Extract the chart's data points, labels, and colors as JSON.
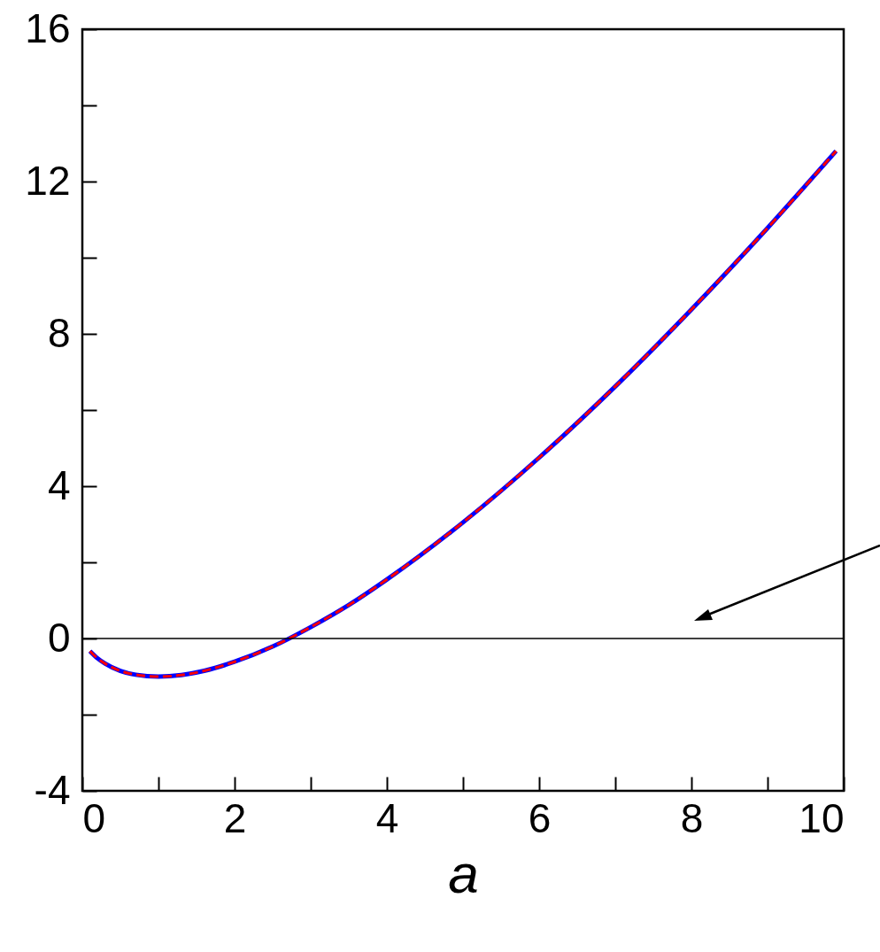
{
  "chart_data": {
    "type": "line",
    "xlabel": "a",
    "x": [
      0.1,
      0.2,
      0.3,
      0.5,
      0.7,
      1,
      1.3,
      1.6,
      2,
      2.5,
      3,
      3.5,
      4,
      5,
      6,
      7,
      8,
      9,
      9.9
    ],
    "series": [
      {
        "color": "#0000ff",
        "line_style": "solid",
        "values": [
          -0.33,
          -0.52,
          -0.66,
          -0.85,
          -0.95,
          -1.0,
          -0.96,
          -0.85,
          -0.61,
          -0.21,
          0.3,
          0.88,
          1.55,
          3.05,
          4.75,
          6.62,
          8.64,
          10.78,
          12.8
        ]
      },
      {
        "color": "#ff0000",
        "line_style": "dashed",
        "values": [
          -0.33,
          -0.52,
          -0.66,
          -0.85,
          -0.95,
          -1.0,
          -0.96,
          -0.85,
          -0.61,
          -0.21,
          0.3,
          0.88,
          1.55,
          3.05,
          4.75,
          6.62,
          8.64,
          10.78,
          12.8
        ]
      }
    ],
    "xlim": [
      0,
      10
    ],
    "xticks": [
      0,
      {
        "value": 1,
        "label": null
      },
      2,
      {
        "value": 3,
        "label": null
      },
      4,
      {
        "value": 5,
        "label": null
      },
      6,
      {
        "value": 7,
        "label": null
      },
      8,
      {
        "value": 9,
        "label": null
      },
      10
    ],
    "ylim": [
      -4,
      16
    ],
    "yticks": [
      -4,
      {
        "value": -2,
        "label": null
      },
      0,
      {
        "value": 2,
        "label": null
      },
      4,
      {
        "value": 6,
        "label": null
      },
      8,
      {
        "value": 10,
        "label": null
      },
      12,
      {
        "value": 14,
        "label": null
      },
      16
    ],
    "ref_lines": [
      {
        "axis": "y",
        "value": 0,
        "color": "#000000"
      }
    ],
    "grid": false
  }
}
